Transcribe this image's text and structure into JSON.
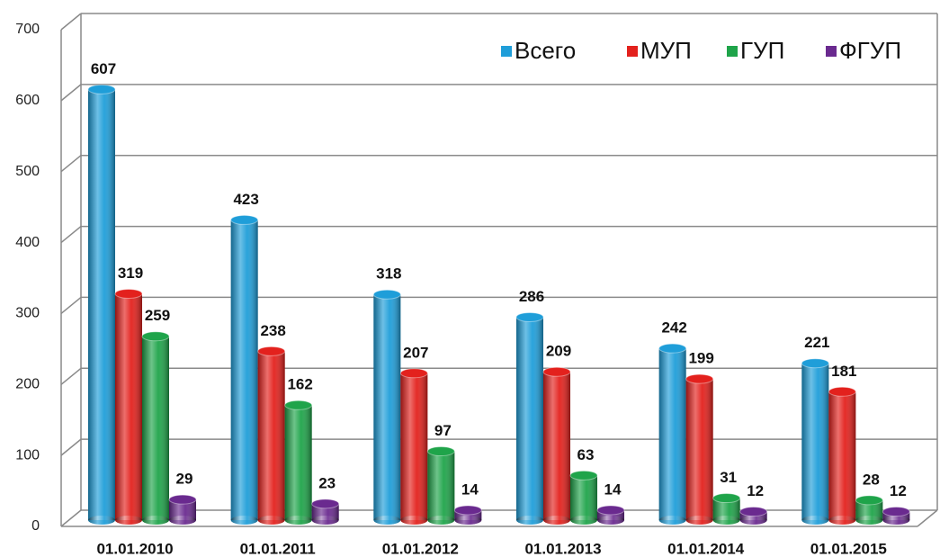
{
  "chart_data": {
    "type": "bar3d",
    "categories": [
      "01.01.2010",
      "01.01.2011",
      "01.01.2012",
      "01.01.2013",
      "01.01.2014",
      "01.01.2015"
    ],
    "series": [
      {
        "name": "Всего",
        "color": "#1f9ed9",
        "values": [
          607,
          423,
          318,
          286,
          242,
          221
        ]
      },
      {
        "name": "МУП",
        "color": "#e3211d",
        "values": [
          319,
          238,
          207,
          209,
          199,
          181
        ]
      },
      {
        "name": "ГУП",
        "color": "#1fa44a",
        "values": [
          259,
          162,
          97,
          63,
          31,
          28
        ]
      },
      {
        "name": "ФГУП",
        "color": "#6a2a8f",
        "values": [
          29,
          23,
          14,
          14,
          12,
          12
        ]
      }
    ],
    "ylim": [
      0,
      700
    ],
    "yticks": [
      0,
      100,
      200,
      300,
      400,
      500,
      600,
      700
    ],
    "grid": true,
    "legend": "top-right"
  }
}
